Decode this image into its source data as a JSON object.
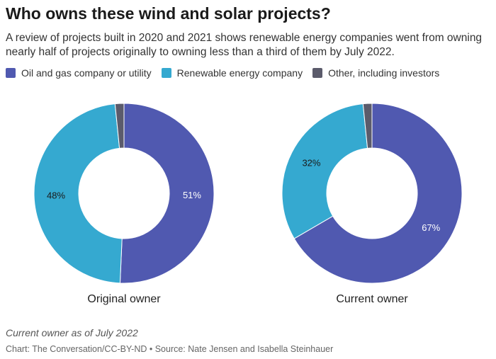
{
  "header": {
    "title": "Who owns these wind and solar projects?",
    "subtitle": "A review of projects built in 2020 and 2021 shows renewable energy companies went from owning nearly half of projects originally to owning less than a third of them by July 2022."
  },
  "legend": [
    {
      "label": "Oil and gas company or utility",
      "color": "#5059b0"
    },
    {
      "label": "Renewable energy company",
      "color": "#35a9d0"
    },
    {
      "label": "Other, including investors",
      "color": "#5b5b6b"
    }
  ],
  "chart_data": [
    {
      "type": "pie",
      "title": "Original owner",
      "slices": [
        {
          "name": "Oil and gas company or utility",
          "value": 51,
          "label": "51%"
        },
        {
          "name": "Renewable energy company",
          "value": 48,
          "label": "48%"
        },
        {
          "name": "Other, including investors",
          "value": 1.6,
          "label": ""
        }
      ]
    },
    {
      "type": "pie",
      "title": "Current owner",
      "slices": [
        {
          "name": "Oil and gas company or utility",
          "value": 67,
          "label": "67%"
        },
        {
          "name": "Renewable energy company",
          "value": 32,
          "label": "32%"
        },
        {
          "name": "Other, including investors",
          "value": 1.6,
          "label": ""
        }
      ]
    }
  ],
  "footer": {
    "note": "Current owner as of July 2022",
    "source": "Chart: The Conversation/CC-BY-ND • Source: Nate Jensen and Isabella Steinhauer"
  }
}
